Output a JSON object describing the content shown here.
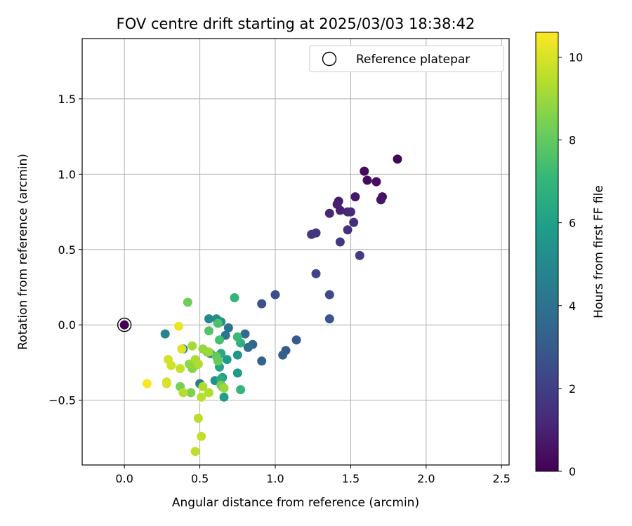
{
  "chart_data": {
    "type": "scatter",
    "title": "FOV centre drift starting at 2025/03/03 18:38:42",
    "xlabel": "Angular distance from reference (arcmin)",
    "ylabel": "Rotation from reference (arcmin)",
    "xlim": [
      -0.28,
      2.55
    ],
    "ylim": [
      -0.93,
      1.9
    ],
    "xticks": [
      0.0,
      0.5,
      1.0,
      1.5,
      2.0,
      2.5
    ],
    "xtick_labels": [
      "0.0",
      "0.5",
      "1.0",
      "1.5",
      "2.0",
      "2.5"
    ],
    "yticks": [
      -0.5,
      0.0,
      0.5,
      1.0,
      1.5
    ],
    "ytick_labels": [
      "−0.5",
      "0.0",
      "0.5",
      "1.0",
      "1.5"
    ],
    "grid": true,
    "legend": {
      "position": "top-right",
      "entries": [
        "Reference platepar"
      ]
    },
    "reference_point": {
      "x": 0.0,
      "y": 0.0,
      "label": "Reference platepar"
    },
    "colorbar": {
      "label": "Hours from first FF file",
      "range": [
        0,
        10.6
      ],
      "ticks": [
        0,
        2,
        4,
        6,
        8,
        10
      ],
      "tick_labels": [
        "0",
        "2",
        "4",
        "6",
        "8",
        "10"
      ],
      "colormap": "viridis"
    },
    "colormap_stops": [
      "#440154",
      "#482878",
      "#3e4989",
      "#31688e",
      "#26828e",
      "#1f9e89",
      "#35b779",
      "#6ece58",
      "#b5de2b",
      "#fde725"
    ],
    "points": [
      [
        1.81,
        1.1,
        0.1
      ],
      [
        1.59,
        1.02,
        0.2
      ],
      [
        1.61,
        0.96,
        0.3
      ],
      [
        1.67,
        0.95,
        0.4
      ],
      [
        1.71,
        0.85,
        0.5
      ],
      [
        1.7,
        0.83,
        0.6
      ],
      [
        1.53,
        0.85,
        0.7
      ],
      [
        1.42,
        0.82,
        0.8
      ],
      [
        1.41,
        0.8,
        0.9
      ],
      [
        1.43,
        0.76,
        1.0
      ],
      [
        1.36,
        0.74,
        1.1
      ],
      [
        1.48,
        0.75,
        1.2
      ],
      [
        1.5,
        0.75,
        1.3
      ],
      [
        1.52,
        0.68,
        1.4
      ],
      [
        1.48,
        0.63,
        1.5
      ],
      [
        1.27,
        0.61,
        1.6
      ],
      [
        1.24,
        0.6,
        1.7
      ],
      [
        1.43,
        0.55,
        1.8
      ],
      [
        1.56,
        0.46,
        1.9
      ],
      [
        1.27,
        0.34,
        2.2
      ],
      [
        1.36,
        0.2,
        2.4
      ],
      [
        1.0,
        0.2,
        2.5
      ],
      [
        0.91,
        0.14,
        2.7
      ],
      [
        1.36,
        0.04,
        2.8
      ],
      [
        1.14,
        -0.1,
        3.0
      ],
      [
        1.07,
        -0.17,
        3.1
      ],
      [
        1.05,
        -0.2,
        3.2
      ],
      [
        0.91,
        -0.24,
        3.3
      ],
      [
        0.85,
        -0.13,
        3.5
      ],
      [
        0.8,
        -0.06,
        3.7
      ],
      [
        0.82,
        -0.15,
        3.8
      ],
      [
        0.69,
        -0.02,
        4.0
      ],
      [
        0.67,
        -0.07,
        4.1
      ],
      [
        0.57,
        -0.19,
        4.3
      ],
      [
        0.5,
        -0.39,
        4.4
      ],
      [
        0.39,
        -0.16,
        4.6
      ],
      [
        0.27,
        -0.06,
        4.8
      ],
      [
        0.56,
        0.04,
        5.0
      ],
      [
        0.61,
        0.04,
        5.2
      ],
      [
        0.64,
        0.02,
        5.3
      ],
      [
        0.6,
        -0.37,
        5.4
      ],
      [
        0.65,
        -0.35,
        5.6
      ],
      [
        0.75,
        -0.2,
        5.6
      ],
      [
        0.75,
        -0.32,
        5.7
      ],
      [
        0.68,
        -0.23,
        5.8
      ],
      [
        0.66,
        -0.48,
        5.9
      ],
      [
        0.65,
        -0.41,
        6.0
      ],
      [
        0.63,
        -0.28,
        6.2
      ],
      [
        0.64,
        -0.19,
        6.4
      ],
      [
        0.64,
        -0.36,
        6.5
      ],
      [
        0.77,
        -0.12,
        6.7
      ],
      [
        0.73,
        0.18,
        6.9
      ],
      [
        0.77,
        -0.43,
        7.0
      ],
      [
        0.75,
        -0.08,
        7.2
      ],
      [
        0.63,
        -0.1,
        7.4
      ],
      [
        0.62,
        0.01,
        7.6
      ],
      [
        0.56,
        -0.04,
        7.7
      ],
      [
        0.55,
        -0.18,
        7.9
      ],
      [
        0.61,
        -0.21,
        8.0
      ],
      [
        0.62,
        -0.24,
        8.1
      ],
      [
        0.42,
        0.15,
        8.2
      ],
      [
        0.64,
        -0.4,
        8.3
      ],
      [
        0.37,
        -0.41,
        8.4
      ],
      [
        0.44,
        -0.45,
        8.5
      ],
      [
        0.47,
        -0.27,
        8.6
      ],
      [
        0.45,
        -0.29,
        8.7
      ],
      [
        0.43,
        -0.26,
        8.8
      ],
      [
        0.52,
        -0.16,
        8.9
      ],
      [
        0.56,
        -0.18,
        9.0
      ],
      [
        0.66,
        -0.42,
        9.0
      ],
      [
        0.45,
        -0.14,
        9.1
      ],
      [
        0.47,
        -0.23,
        9.2
      ],
      [
        0.49,
        -0.26,
        9.3
      ],
      [
        0.52,
        -0.41,
        9.3
      ],
      [
        0.39,
        -0.45,
        9.4
      ],
      [
        0.56,
        -0.45,
        9.4
      ],
      [
        0.51,
        -0.48,
        9.5
      ],
      [
        0.49,
        -0.62,
        9.5
      ],
      [
        0.51,
        -0.74,
        9.6
      ],
      [
        0.47,
        -0.84,
        9.6
      ],
      [
        0.37,
        -0.29,
        9.7
      ],
      [
        0.31,
        -0.27,
        9.8
      ],
      [
        0.28,
        -0.38,
        9.8
      ],
      [
        0.29,
        -0.23,
        9.9
      ],
      [
        0.28,
        -0.39,
        10.0
      ],
      [
        0.38,
        -0.16,
        10.1
      ],
      [
        0.36,
        -0.01,
        10.3
      ],
      [
        0.15,
        -0.39,
        10.5
      ]
    ]
  }
}
